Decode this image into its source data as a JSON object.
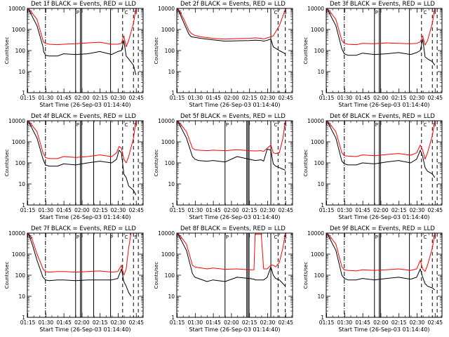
{
  "figure": {
    "background": "#ffffff",
    "colors": {
      "events": "#000000",
      "lld": "#ff0000",
      "markers": "#000000"
    }
  },
  "chart_data": [
    {
      "type": "line",
      "title": "Det 1f BLACK = Events, RED = LLD",
      "xlabel": "Start Time (26-Sep-03 01:14:40)",
      "ylabel": "Counts/sec",
      "yscale": "log",
      "ylim": [
        1,
        10000
      ],
      "x_ticks": [
        "01:15",
        "01:30",
        "01:45",
        "02:00",
        "02:15",
        "02:30",
        "02:45"
      ],
      "y_ticks": [
        "1",
        "10",
        "100",
        "1000",
        "10000"
      ],
      "x": [
        1.0,
        8,
        13,
        13.5,
        15,
        18,
        25,
        30,
        40,
        50,
        60,
        70,
        75,
        78,
        80,
        82,
        84,
        88,
        90
      ],
      "series": [
        {
          "name": "Events",
          "color": "#000000",
          "values": [
            9000,
            1500,
            150,
            90,
            60,
            55,
            55,
            70,
            65,
            70,
            90,
            65,
            90,
            100,
            300,
            55,
            40,
            20,
            7
          ]
        },
        {
          "name": "LLD",
          "color": "#ff0000",
          "values": [
            10000,
            3000,
            300,
            250,
            220,
            200,
            190,
            200,
            210,
            230,
            250,
            200,
            200,
            220,
            500,
            150,
            300,
            2000,
            10000
          ]
        }
      ],
      "vertical_markers": {
        "dash_dot": [
          15
        ],
        "solid": [
          40,
          44,
          45,
          69
        ],
        "dashed": [
          79,
          88,
          92
        ]
      },
      "marker_labels": [
        {
          "text": "S",
          "x": 1
        },
        {
          "text": "P",
          "x": 40
        },
        {
          "text": "C",
          "x": 80
        },
        {
          "text": "S",
          "x": 88
        }
      ]
    },
    {
      "type": "line",
      "title": "Det 2f BLACK = Events, RED = LLD",
      "xlabel": "Start Time (26-Sep-03 01:14:40)",
      "ylabel": "Counts/sec",
      "yscale": "log",
      "ylim": [
        1,
        10000
      ],
      "x_ticks": [
        "01:15",
        "01:30",
        "01:45",
        "02:00",
        "02:15",
        "02:30",
        "02:45"
      ],
      "y_ticks": [
        "1",
        "10",
        "100",
        "1000",
        "10000"
      ],
      "x": [
        1.0,
        6,
        10,
        12,
        15,
        20,
        30,
        40,
        50,
        60,
        65,
        70,
        72,
        75,
        78,
        80,
        85,
        90
      ],
      "series": [
        {
          "name": "Events",
          "color": "#000000",
          "values": [
            9000,
            2000,
            600,
            450,
            420,
            380,
            320,
            280,
            290,
            300,
            310,
            300,
            280,
            310,
            350,
            150,
            100,
            70
          ]
        },
        {
          "name": "LLD",
          "color": "#ff0000",
          "values": [
            10000,
            3000,
            900,
            650,
            520,
            450,
            380,
            350,
            370,
            380,
            400,
            380,
            350,
            400,
            450,
            500,
            1500,
            9000
          ]
        }
      ],
      "vertical_markers": {
        "dash_dot": [],
        "solid": [
          78
        ],
        "dashed": [
          84,
          90
        ]
      },
      "marker_labels": [
        {
          "text": "S",
          "x": 1
        },
        {
          "text": "C",
          "x": 80
        },
        {
          "text": "S",
          "x": 88
        }
      ]
    },
    {
      "type": "line",
      "title": "Det 3f BLACK = Events, RED = LLD",
      "xlabel": "Start Time (26-Sep-03 01:14:40)",
      "ylabel": "Counts/sec",
      "yscale": "log",
      "ylim": [
        1,
        10000
      ],
      "x_ticks": [
        "01:15",
        "01:30",
        "01:45",
        "02:00",
        "02:15",
        "02:30",
        "02:45"
      ],
      "y_ticks": [
        "1",
        "10",
        "100",
        "1000",
        "10000"
      ],
      "x": [
        1.0,
        8,
        13,
        15,
        18,
        25,
        30,
        40,
        50,
        60,
        70,
        75,
        78,
        80,
        82,
        84,
        88,
        90
      ],
      "series": [
        {
          "name": "Events",
          "color": "#000000",
          "values": [
            9000,
            1500,
            120,
            70,
            60,
            60,
            75,
            65,
            70,
            80,
            65,
            80,
            100,
            350,
            50,
            40,
            30,
            20
          ]
        },
        {
          "name": "LLD",
          "color": "#ff0000",
          "values": [
            10000,
            3000,
            300,
            220,
            200,
            190,
            220,
            210,
            230,
            220,
            210,
            220,
            260,
            500,
            180,
            300,
            2000,
            10000
          ]
        }
      ],
      "vertical_markers": {
        "dash_dot": [
          15
        ],
        "solid": [
          40,
          44,
          45,
          69
        ],
        "dashed": [
          79,
          88,
          92
        ]
      },
      "marker_labels": [
        {
          "text": "S",
          "x": 1
        },
        {
          "text": "P",
          "x": 40
        },
        {
          "text": "C",
          "x": 80
        },
        {
          "text": "S",
          "x": 88
        }
      ]
    },
    {
      "type": "line",
      "title": "Det 4f BLACK = Events, RED = LLD",
      "xlabel": "Start Time (26-Sep-03 01:14:40)",
      "ylabel": "Counts/sec",
      "yscale": "log",
      "ylim": [
        1,
        10000
      ],
      "x_ticks": [
        "01:15",
        "01:30",
        "01:45",
        "02:00",
        "02:15",
        "02:30",
        "02:45"
      ],
      "y_ticks": [
        "1",
        "10",
        "100",
        "1000",
        "10000"
      ],
      "x": [
        1.0,
        8,
        13,
        15,
        18,
        25,
        30,
        40,
        50,
        60,
        70,
        74,
        76,
        78,
        80,
        82,
        84,
        88,
        90
      ],
      "series": [
        {
          "name": "Events",
          "color": "#000000",
          "values": [
            9000,
            1500,
            150,
            80,
            70,
            70,
            90,
            80,
            100,
            120,
            100,
            150,
            400,
            300,
            30,
            20,
            8,
            5,
            3
          ]
        },
        {
          "name": "LLD",
          "color": "#ff0000",
          "values": [
            10000,
            3000,
            300,
            180,
            160,
            160,
            200,
            180,
            200,
            240,
            200,
            300,
            600,
            500,
            150,
            100,
            200,
            1500,
            10000
          ]
        }
      ],
      "vertical_markers": {
        "dash_dot": [
          15
        ],
        "solid": [
          40,
          44,
          45,
          55,
          69
        ],
        "dashed": [
          79,
          88,
          92
        ]
      },
      "marker_labels": [
        {
          "text": "S",
          "x": 1
        },
        {
          "text": "P",
          "x": 40
        },
        {
          "text": "C",
          "x": 80
        },
        {
          "text": "S",
          "x": 88
        }
      ]
    },
    {
      "type": "line",
      "title": "Det 5f BLACK = Events, RED = LLD",
      "xlabel": "Start Time (26-Sep-03 01:14:40)",
      "ylabel": "Counts/sec",
      "yscale": "log",
      "ylim": [
        1,
        10000
      ],
      "x_ticks": [
        "01:15",
        "01:30",
        "01:45",
        "02:00",
        "02:15",
        "02:30",
        "02:45"
      ],
      "y_ticks": [
        "1",
        "10",
        "100",
        "1000",
        "10000"
      ],
      "x": [
        1.0,
        8,
        13,
        15,
        18,
        25,
        30,
        40,
        50,
        60,
        65,
        70,
        72,
        75,
        78,
        80,
        82,
        85,
        88,
        90
      ],
      "series": [
        {
          "name": "Events",
          "color": "#000000",
          "values": [
            9000,
            1500,
            200,
            150,
            130,
            120,
            130,
            110,
            200,
            150,
            130,
            140,
            120,
            450,
            400,
            90,
            70,
            60,
            50,
            45
          ]
        },
        {
          "name": "LLD",
          "color": "#ff0000",
          "values": [
            10000,
            3000,
            500,
            420,
            400,
            380,
            400,
            380,
            420,
            380,
            370,
            380,
            350,
            500,
            700,
            300,
            280,
            300,
            1500,
            10000
          ]
        }
      ],
      "vertical_markers": {
        "dash_dot": [],
        "solid": [
          40,
          58,
          59,
          60,
          78
        ],
        "dashed": [
          84,
          90
        ]
      },
      "marker_labels": [
        {
          "text": "S",
          "x": 1
        },
        {
          "text": "P",
          "x": 40
        },
        {
          "text": "C",
          "x": 80
        },
        {
          "text": "S",
          "x": 88
        }
      ]
    },
    {
      "type": "line",
      "title": "Det 6f BLACK = Events, RED = LLD",
      "xlabel": "Start Time (26-Sep-03 01:14:40)",
      "ylabel": "Counts/sec",
      "yscale": "log",
      "ylim": [
        1,
        10000
      ],
      "x_ticks": [
        "01:15",
        "01:30",
        "01:45",
        "02:00",
        "02:15",
        "02:30",
        "02:45"
      ],
      "y_ticks": [
        "1",
        "10",
        "100",
        "1000",
        "10000"
      ],
      "x": [
        1.0,
        8,
        13,
        15,
        18,
        25,
        30,
        40,
        50,
        60,
        70,
        75,
        78,
        80,
        82,
        84,
        88,
        90
      ],
      "series": [
        {
          "name": "Events",
          "color": "#000000",
          "values": [
            9000,
            1500,
            120,
            90,
            80,
            80,
            100,
            90,
            110,
            130,
            100,
            150,
            400,
            200,
            60,
            40,
            30,
            20
          ]
        },
        {
          "name": "LLD",
          "color": "#ff0000",
          "values": [
            10000,
            3000,
            300,
            220,
            210,
            200,
            240,
            220,
            250,
            280,
            230,
            300,
            700,
            400,
            150,
            300,
            2000,
            10000
          ]
        }
      ],
      "vertical_markers": {
        "dash_dot": [
          15
        ],
        "solid": [
          40,
          44,
          45,
          69
        ],
        "dashed": [
          79,
          88,
          92
        ]
      },
      "marker_labels": [
        {
          "text": "S",
          "x": 1
        },
        {
          "text": "P",
          "x": 40
        },
        {
          "text": "C",
          "x": 80
        },
        {
          "text": "S",
          "x": 88
        }
      ]
    },
    {
      "type": "line",
      "title": "Det 7f BLACK = Events, RED = LLD",
      "xlabel": "Start Time (26-Sep-03 01:14:40)",
      "ylabel": "Counts/sec",
      "yscale": "log",
      "ylim": [
        1,
        10000
      ],
      "x_ticks": [
        "01:15",
        "01:30",
        "01:45",
        "02:00",
        "02:15",
        "02:30",
        "02:45"
      ],
      "y_ticks": [
        "1",
        "10",
        "100",
        "1000",
        "10000"
      ],
      "x": [
        1.0,
        4,
        8,
        13,
        15,
        18,
        25,
        30,
        40,
        50,
        60,
        70,
        75,
        78,
        80,
        82,
        84,
        86
      ],
      "series": [
        {
          "name": "Events",
          "color": "#000000",
          "values": [
            9000,
            3000,
            500,
            80,
            60,
            55,
            60,
            60,
            55,
            60,
            60,
            60,
            70,
            200,
            50,
            30,
            15,
            10
          ]
        },
        {
          "name": "LLD",
          "color": "#ff0000",
          "values": [
            10000,
            5000,
            1000,
            200,
            150,
            140,
            150,
            150,
            140,
            150,
            160,
            140,
            150,
            300,
            100,
            200,
            2000,
            10000
          ]
        }
      ],
      "vertical_markers": {
        "dash_dot": [
          15
        ],
        "solid": [
          40,
          44,
          45,
          55,
          69
        ],
        "dashed": [
          79,
          88,
          92
        ]
      },
      "marker_labels": [
        {
          "text": "S",
          "x": 1
        },
        {
          "text": "P",
          "x": 40
        },
        {
          "text": "P",
          "x": 68
        },
        {
          "text": "C",
          "x": 80
        },
        {
          "text": "S",
          "x": 88
        }
      ]
    },
    {
      "type": "line",
      "title": "Det 8f BLACK = Events, RED = LLD",
      "xlabel": "Start Time (26-Sep-03 01:14:40)",
      "ylabel": "Counts/sec",
      "yscale": "log",
      "ylim": [
        1,
        10000
      ],
      "x_ticks": [
        "01:15",
        "01:30",
        "01:45",
        "02:00",
        "02:15",
        "02:30",
        "02:45"
      ],
      "y_ticks": [
        "1",
        "10",
        "100",
        "1000",
        "10000"
      ],
      "x": [
        1.0,
        8,
        13,
        15,
        18,
        25,
        30,
        40,
        50,
        60,
        64,
        65,
        70,
        72,
        75,
        78,
        80,
        82,
        85,
        88,
        90
      ],
      "series": [
        {
          "name": "Events",
          "color": "#000000",
          "values": [
            9000,
            1500,
            120,
            80,
            70,
            50,
            60,
            50,
            80,
            70,
            65,
            60,
            60,
            60,
            80,
            250,
            100,
            70,
            60,
            40,
            30
          ]
        },
        {
          "name": "LLD",
          "color": "#ff0000",
          "values": [
            10000,
            3000,
            300,
            250,
            230,
            200,
            220,
            190,
            200,
            180,
            180,
            9000,
            9000,
            200,
            200,
            300,
            300,
            250,
            400,
            2000,
            10000
          ]
        }
      ],
      "vertical_markers": {
        "dash_dot": [],
        "solid": [
          40,
          58,
          59,
          60,
          78
        ],
        "dashed": [
          84,
          90
        ]
      },
      "marker_labels": [
        {
          "text": "S",
          "x": 1
        },
        {
          "text": "P",
          "x": 40
        },
        {
          "text": "C",
          "x": 80
        },
        {
          "text": "S",
          "x": 88
        }
      ]
    },
    {
      "type": "line",
      "title": "Det 9f BLACK = Events, RED = LLD",
      "xlabel": "Start Time (26-Sep-03 01:14:40)",
      "ylabel": "Counts/sec",
      "yscale": "log",
      "ylim": [
        1,
        10000
      ],
      "x_ticks": [
        "01:15",
        "01:30",
        "01:45",
        "02:00",
        "02:15",
        "02:30",
        "02:45"
      ],
      "y_ticks": [
        "1",
        "10",
        "100",
        "1000",
        "10000"
      ],
      "x": [
        1.0,
        8,
        13,
        15,
        18,
        25,
        30,
        40,
        50,
        60,
        70,
        75,
        78,
        80,
        82,
        84,
        88,
        90
      ],
      "series": [
        {
          "name": "Events",
          "color": "#000000",
          "values": [
            9000,
            1500,
            100,
            70,
            60,
            60,
            70,
            60,
            70,
            80,
            65,
            80,
            200,
            80,
            40,
            30,
            25,
            20
          ]
        },
        {
          "name": "LLD",
          "color": "#ff0000",
          "values": [
            10000,
            3000,
            250,
            180,
            170,
            160,
            180,
            170,
            180,
            200,
            170,
            200,
            500,
            200,
            150,
            300,
            2000,
            10000
          ]
        }
      ],
      "vertical_markers": {
        "dash_dot": [
          15
        ],
        "solid": [
          40,
          44,
          45,
          69
        ],
        "dashed": [
          79,
          88,
          92
        ]
      },
      "marker_labels": [
        {
          "text": "S",
          "x": 1
        },
        {
          "text": "P",
          "x": 40
        },
        {
          "text": "C",
          "x": 80
        },
        {
          "text": "S",
          "x": 88
        }
      ]
    }
  ]
}
